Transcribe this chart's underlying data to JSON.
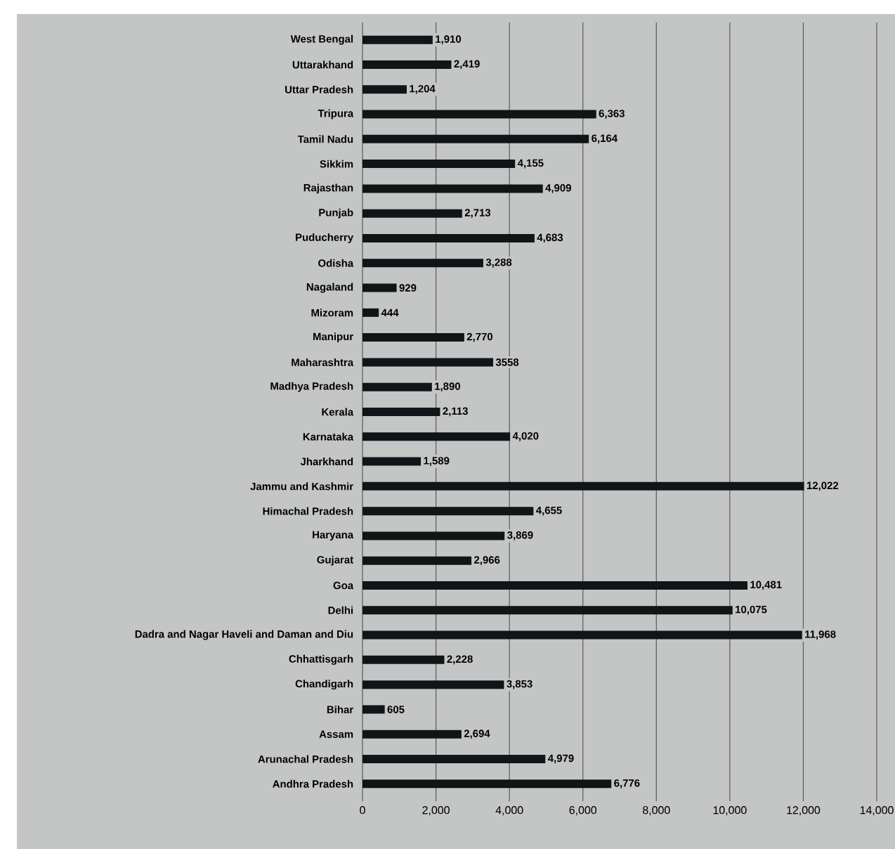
{
  "chart_data": {
    "type": "bar",
    "orientation": "horizontal",
    "categories": [
      "West Bengal",
      "Uttarakhand",
      "Uttar Pradesh",
      "Tripura",
      "Tamil Nadu",
      "Sikkim",
      "Rajasthan",
      "Punjab",
      "Puducherry",
      "Odisha",
      "Nagaland",
      "Mizoram",
      "Manipur",
      "Maharashtra",
      "Madhya Pradesh",
      "Kerala",
      "Karnataka",
      "Jharkhand",
      "Jammu and Kashmir",
      "Himachal Pradesh",
      "Haryana",
      "Gujarat",
      "Goa",
      "Delhi",
      "Dadra and Nagar Haveli and Daman and Diu",
      "Chhattisgarh",
      "Chandigarh",
      "Bihar",
      "Assam",
      "Arunachal Pradesh",
      "Andhra Pradesh"
    ],
    "values": [
      1910,
      2419,
      1204,
      6363,
      6164,
      4155,
      4909,
      2713,
      4683,
      3288,
      929,
      444,
      2770,
      3558,
      1890,
      2113,
      4020,
      1589,
      12022,
      4655,
      3869,
      2966,
      10481,
      10075,
      11968,
      2228,
      3853,
      605,
      2694,
      4979,
      6776
    ],
    "value_labels": [
      "1,910",
      "2,419",
      "1,204",
      "6,363",
      "6,164",
      "4,155",
      "4,909",
      "2,713",
      "4,683",
      "3,288",
      "929",
      "444",
      "2,770",
      "3558",
      "1,890",
      "2,113",
      "4,020",
      "1,589",
      "12,022",
      "4,655",
      "3,869",
      "2,966",
      "10,481",
      "10,075",
      "11,968",
      "2,228",
      "3,853",
      "605",
      "2,694",
      "4,979",
      "6,776"
    ],
    "color": "#111518",
    "xlim": [
      0,
      14000
    ],
    "xticks": [
      0,
      {
        "value": 2000,
        "label": "2,000"
      },
      {
        "value": 4000,
        "label": "4,000"
      },
      {
        "value": 6000,
        "label": "6,000"
      },
      {
        "value": 8000,
        "label": "8,000"
      },
      {
        "value": 10000,
        "label": "10,000"
      },
      {
        "value": 12000,
        "label": "12,000"
      },
      {
        "value": 14000,
        "label": "14,000"
      }
    ],
    "grid": "x"
  }
}
